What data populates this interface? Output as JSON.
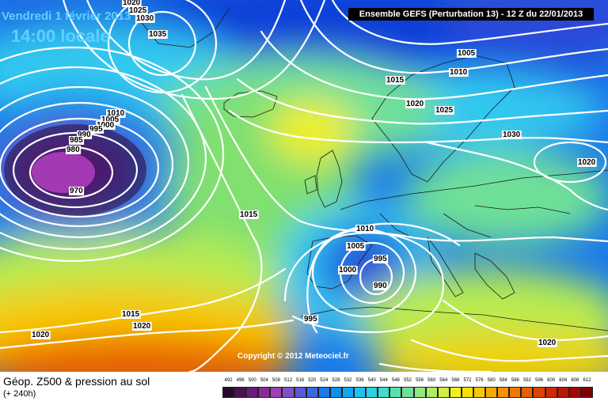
{
  "header": {
    "date": "Vendredi 1 février 2013",
    "time": "14:00 locale",
    "model_run": "Ensemble GEFS (Perturbation 13)  -  12 Z du 22/01/2013"
  },
  "copyright": "Copyright © 2012 Meteociel.fr",
  "footer": {
    "title": "Géop. Z500 & pression au sol",
    "subtitle": "(+ 240h)"
  },
  "legend": {
    "values": [
      "492",
      "496",
      "500",
      "504",
      "508",
      "512",
      "516",
      "520",
      "524",
      "528",
      "532",
      "536",
      "540",
      "544",
      "548",
      "552",
      "556",
      "560",
      "564",
      "568",
      "572",
      "576",
      "580",
      "584",
      "588",
      "592",
      "596",
      "600",
      "604",
      "608",
      "612"
    ],
    "colors": [
      "#2a0a2a",
      "#4a1050",
      "#6a1a7a",
      "#8a2a9a",
      "#a040b0",
      "#8050c8",
      "#5a5ad8",
      "#3a6ae0",
      "#1a7ae8",
      "#0a90ee",
      "#10a8f0",
      "#20c0f0",
      "#30d0e0",
      "#40dcc8",
      "#58e0b0",
      "#70e098",
      "#90e880",
      "#b0ec60",
      "#d0f040",
      "#f0f020",
      "#f8e000",
      "#f8c800",
      "#f8a800",
      "#f89000",
      "#f07800",
      "#e86000",
      "#e04000",
      "#d02800",
      "#b81800",
      "#a00800",
      "#800000"
    ]
  },
  "map": {
    "colors": {
      "deep_low": "#3a0a3a",
      "low": "#9020a0",
      "dark_blue": "#2a4ad8",
      "blue": "#1a7ae8",
      "cyan": "#30c8f0",
      "teal": "#40dcc8",
      "green": "#80e070",
      "light_green": "#b8ec50",
      "yellow": "#f0f020",
      "orange": "#f8a800",
      "red_orange": "#e86000",
      "isobar": "#ffffff",
      "coast": "#1a1a1a"
    },
    "isobar_labels": [
      "1020",
      "1025",
      "1030",
      "1035",
      "1010",
      "1005",
      "1000",
      "995",
      "990",
      "985",
      "980",
      "975",
      "970",
      "1015",
      "1005",
      "1010",
      "1015",
      "1020",
      "1025",
      "1030",
      "1020",
      "1010",
      "1005",
      "1000",
      "995",
      "990",
      "995",
      "1015",
      "1020",
      "1020",
      "1020"
    ]
  }
}
